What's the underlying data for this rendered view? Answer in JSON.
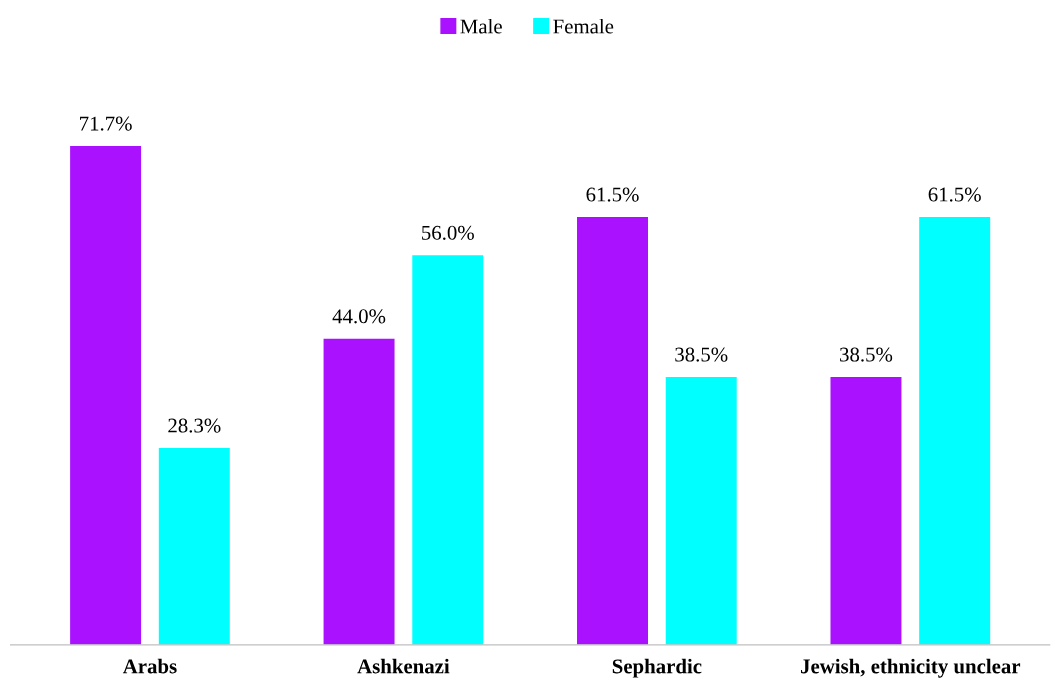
{
  "chart_data": {
    "type": "bar",
    "categories": [
      "Arabs",
      "Ashkenazi",
      "Sephardic",
      "Jewish, ethnicity unclear"
    ],
    "series": [
      {
        "name": "Male",
        "color": "#aa11ff",
        "values": [
          71.7,
          44.0,
          61.5,
          38.5
        ],
        "value_labels": [
          "71.7%",
          "44.0%",
          "61.5%",
          "38.5%"
        ]
      },
      {
        "name": "Female",
        "color": "#00ffff",
        "values": [
          28.3,
          56.0,
          38.5,
          61.5
        ],
        "value_labels": [
          "28.3%",
          "56.0%",
          "38.5%",
          "61.5%"
        ]
      }
    ],
    "legend": "top",
    "grid": false,
    "tick_labels": "x"
  }
}
